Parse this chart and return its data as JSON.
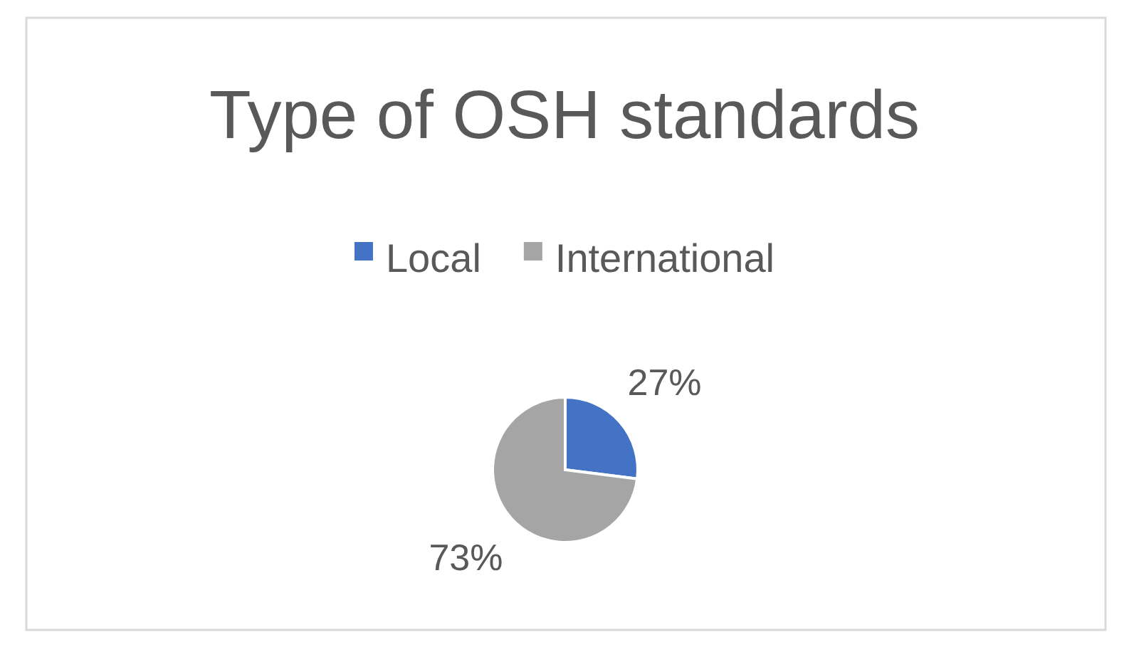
{
  "chart_data": {
    "type": "pie",
    "title": "Type of OSH standards",
    "categories": [
      "Local",
      "International"
    ],
    "values": [
      27,
      73
    ],
    "colors": [
      "#4472c4",
      "#a5a5a5"
    ],
    "value_labels": [
      "27%",
      "73%"
    ],
    "legend": "top"
  }
}
